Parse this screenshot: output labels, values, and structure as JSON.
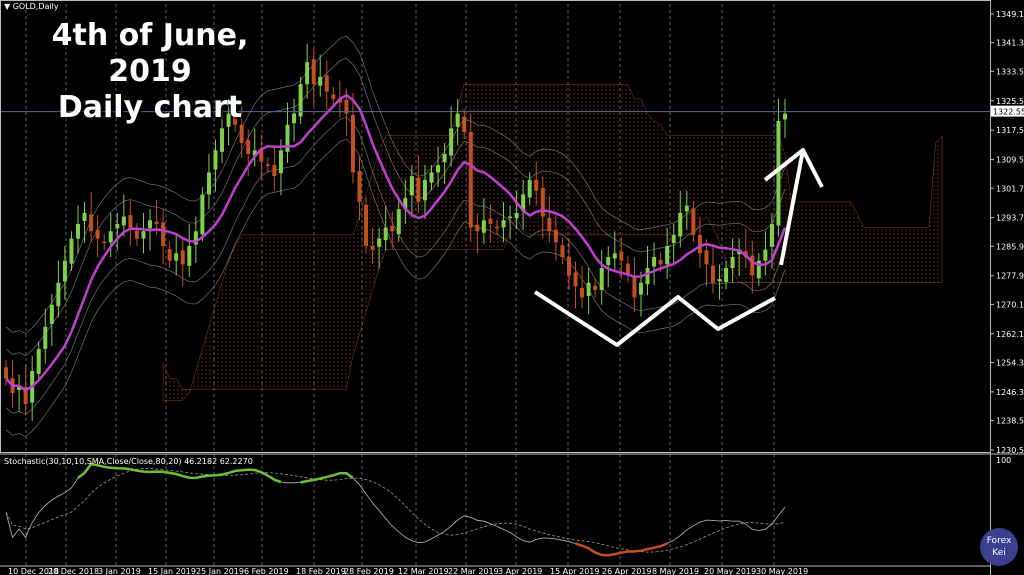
{
  "overlay": {
    "title_line1": "4th of June, 2019",
    "title_line2": "Daily chart"
  },
  "symbol_label": "▼ GOLD,Daily",
  "indicator_label": "Stochastic(30,10,10,SMA,Close/Close,80,20) 46.2182 62.2270",
  "logo": {
    "line1": "Forex",
    "line2": "Kei"
  },
  "colors": {
    "background": "#000000",
    "bull": "#7fd04e",
    "bear": "#c4501f",
    "ma": "#c03fd0",
    "bands": "#a0a0a0",
    "cloud": "#b0502a",
    "stoch_main": "#6fbf3a",
    "stoch_low": "#c4501f",
    "annotation": "#ffffff",
    "price_line": "#5a6a9a"
  },
  "chart_data": {
    "type": "candlestick",
    "price_axis": {
      "ticks": [
        "1349.10",
        "1341.30",
        "1333.50",
        "1325.50",
        "1317.50",
        "1309.50",
        "1301.70",
        "1293.70",
        "1285.90",
        "1277.90",
        "1270.10",
        "1262.10",
        "1254.30",
        "1246.30",
        "1238.50",
        "1230.50"
      ],
      "current": "1322.55",
      "range": [
        1230.5,
        1349.1
      ]
    },
    "stoch_axis": {
      "ticks": [
        "100"
      ]
    },
    "date_ticks": [
      "10 Dec 2018",
      "20 Dec 2018",
      "3 Jan 2019",
      "15 Jan 2019",
      "25 Jan 2019",
      "6 Feb 2019",
      "18 Feb 2019",
      "28 Feb 2019",
      "12 Mar 2019",
      "22 Mar 2019",
      "3 Apr 2019",
      "15 Apr 2019",
      "26 Apr 2019",
      "8 May 2019",
      "20 May 2019",
      "30 May 2019"
    ],
    "close": [
      1250,
      1246,
      1248,
      1243,
      1252,
      1258,
      1264,
      1270,
      1276,
      1282,
      1288,
      1292,
      1295,
      1290,
      1288,
      1287,
      1290,
      1292,
      1294,
      1291,
      1288,
      1290,
      1293,
      1292,
      1286,
      1282,
      1284,
      1281,
      1286,
      1290,
      1300,
      1306,
      1312,
      1318,
      1322,
      1319,
      1314,
      1311,
      1312,
      1309,
      1308,
      1305,
      1312,
      1319,
      1322,
      1330,
      1336,
      1330,
      1332,
      1328,
      1326,
      1325,
      1322,
      1306,
      1298,
      1286,
      1285,
      1288,
      1291,
      1290,
      1296,
      1299,
      1305,
      1298,
      1304,
      1306,
      1308,
      1311,
      1318,
      1322,
      1317,
      1291,
      1290,
      1293,
      1292,
      1291,
      1293,
      1294,
      1295,
      1300,
      1304,
      1301,
      1294,
      1290,
      1287,
      1283,
      1278,
      1275,
      1272,
      1276,
      1274,
      1280,
      1283,
      1284,
      1282,
      1278,
      1272,
      1276,
      1280,
      1283,
      1281,
      1286,
      1289,
      1295,
      1297,
      1289,
      1284,
      1281,
      1276,
      1277,
      1280,
      1283,
      1285,
      1283,
      1278,
      1282,
      1285,
      1292,
      1320,
      1322
    ]
  }
}
